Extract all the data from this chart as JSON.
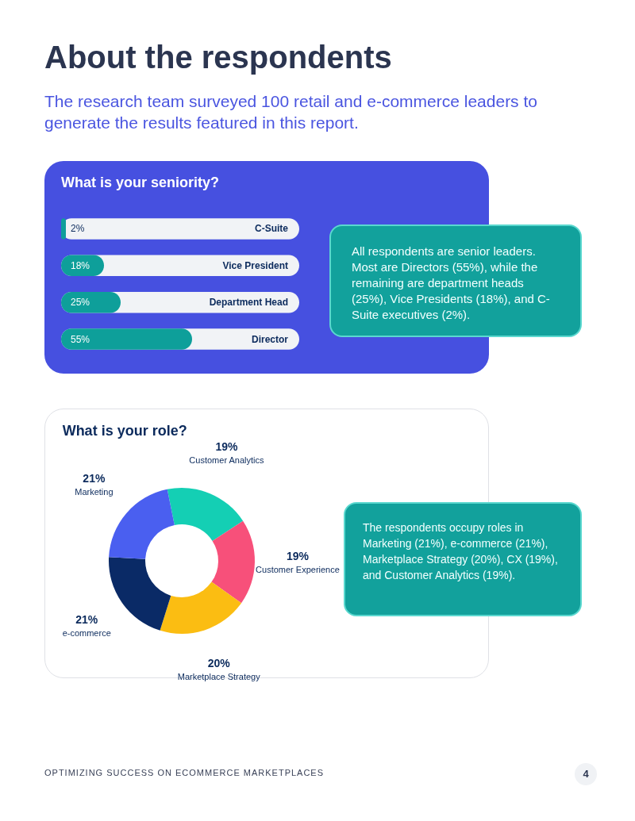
{
  "chart_data": [
    {
      "type": "other",
      "title": "About the respondents",
      "subtitle": "The research team surveyed 100 retail and e-commerce leaders to generate the results featured in this report.",
      "annotations": [
        "OPTIMIZING SUCCESS ON ECOMMERCE MARKETPLACES",
        "4"
      ]
    },
    {
      "type": "bar",
      "orientation": "horizontal",
      "title": "What is your seniority?",
      "categories": [
        "C-Suite",
        "Vice President",
        "Department Head",
        "Director"
      ],
      "values": [
        2,
        18,
        25,
        55
      ],
      "value_labels": [
        "2%",
        "18%",
        "25%",
        "55%"
      ],
      "color": "#0e9f9a",
      "xlim": [
        0,
        100
      ],
      "annotations": [
        "All respondents are senior leaders. Most are Directors (55%), while the remaining are department heads (25%), Vice Presidents (18%), and C-Suite executives (2%)."
      ]
    },
    {
      "type": "donut",
      "title": "What is your role?",
      "categories": [
        "Customer Analytics",
        "Customer Experience",
        "Marketplace Strategy",
        "e-commerce",
        "Marketing"
      ],
      "values": [
        19,
        19,
        20,
        21,
        21
      ],
      "value_labels": [
        "19%",
        "19%",
        "20%",
        "21%",
        "21%"
      ],
      "colors": [
        "#14cfb4",
        "#f7507a",
        "#fbbd12",
        "#0a2a66",
        "#4a5ff0"
      ],
      "legend": false,
      "annotations": [
        "The respondents occupy roles in Marketing (21%), e-commerce (21%), Marketplace Strategy (20%), CX (19%), and Customer Analytics (19%)."
      ]
    }
  ]
}
